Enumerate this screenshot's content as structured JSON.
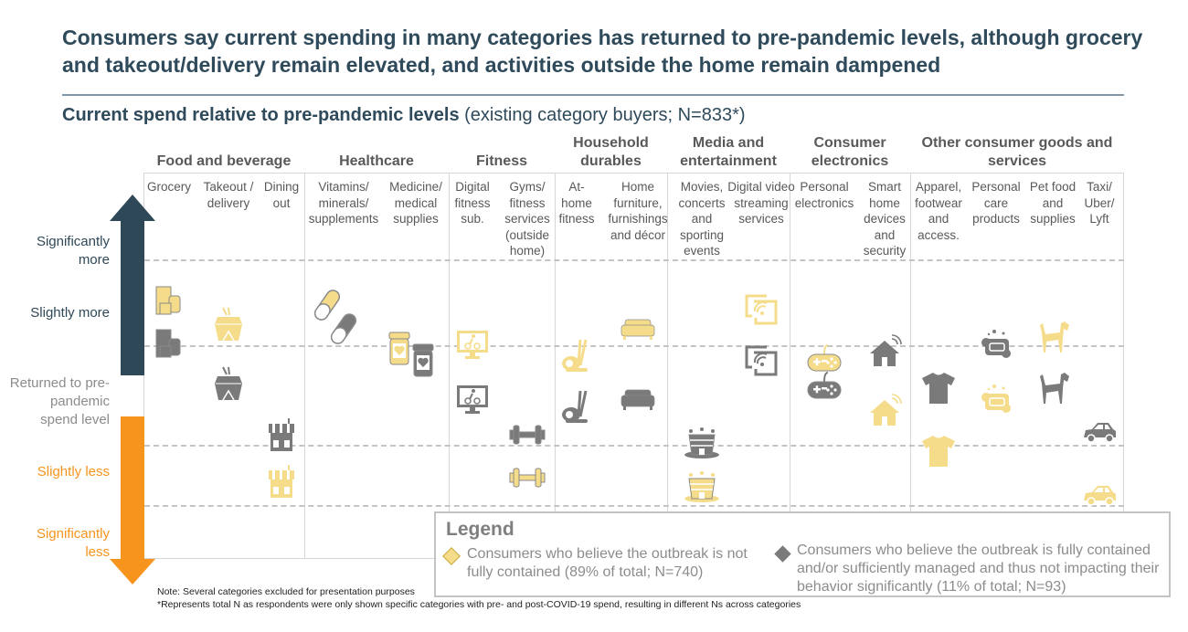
{
  "title": "Consumers say current spending in many categories has returned to pre-pandemic levels, although grocery and takeout/delivery remain elevated, and activities outside the home remain dampened",
  "subtitle": {
    "bold": "Current spend relative to pre-pandemic levels",
    "rest": " (existing category buyers; N=833*)"
  },
  "colors": {
    "not_contained": "#f5dc8a",
    "contained": "#7a7a7a",
    "more_arrow": "#2f4858",
    "less_arrow": "#f7941d",
    "title": "#2e4a5b"
  },
  "y_axis": [
    {
      "label": "Significantly more",
      "level": 2,
      "color": "#2f4858"
    },
    {
      "label": "Slightly more",
      "level": 1,
      "color": "#2f4858"
    },
    {
      "label": "Returned to pre-pandemic spend level",
      "level": 0,
      "color": "#8c8c8c"
    },
    {
      "label": "Slightly less",
      "level": -1,
      "color": "#f7941d"
    },
    {
      "label": "Significantly less",
      "level": -2,
      "color": "#f7941d"
    }
  ],
  "groups": [
    {
      "label": "Food and beverage"
    },
    {
      "label": "Healthcare"
    },
    {
      "label": "Fitness"
    },
    {
      "label": "Household durables"
    },
    {
      "label": "Media and entertainment"
    },
    {
      "label": "Consumer electronics"
    },
    {
      "label": "Other consumer goods and services"
    }
  ],
  "chart_data": {
    "type": "scatter",
    "title": "Current spend relative to pre-pandemic levels",
    "y_scale": "ordinal: Significantly less (-2) to Significantly more (+2)",
    "series": [
      {
        "name": "Consumers who believe the outbreak is not fully contained (89% of total; N=740)",
        "key": "not_contained"
      },
      {
        "name": "Consumers who believe the outbreak is fully contained and/or sufficiently managed and thus not impacting their behavior significantly (11% of total; N=93)",
        "key": "contained"
      }
    ],
    "categories": [
      {
        "label": "Grocery",
        "group": 0,
        "icon": "grocery-icon",
        "not_contained": 1.25,
        "contained": 0.7
      },
      {
        "label": "Takeout / delivery",
        "group": 0,
        "icon": "takeout-box-icon",
        "not_contained": 0.95,
        "contained": 0.2
      },
      {
        "label": "Dining out",
        "group": 0,
        "icon": "restaurant-icon",
        "not_contained": -1.05,
        "contained": -0.45
      },
      {
        "label": "Vitamins/ minerals/ supplements",
        "group": 1,
        "icon": "pill-capsule-icon",
        "not_contained": 1.2,
        "contained": 0.9
      },
      {
        "label": "Medicine/ medical supplies",
        "group": 1,
        "icon": "medicine-bottle-icon",
        "not_contained": 0.65,
        "contained": 0.5
      },
      {
        "label": "Digital fitness sub.",
        "group": 2,
        "icon": "cycling-monitor-icon",
        "not_contained": 0.7,
        "contained": 0.0
      },
      {
        "label": "Gyms/ fitness services (outside home)",
        "group": 2,
        "icon": "dumbbell-icon",
        "not_contained": -1.0,
        "contained": -0.45
      },
      {
        "label": "At-home fitness",
        "group": 3,
        "icon": "elliptical-icon",
        "not_contained": 0.55,
        "contained": -0.1
      },
      {
        "label": "Home furniture, furnishings and décor",
        "group": 3,
        "icon": "sofa-icon",
        "not_contained": 0.9,
        "contained": 0.0
      },
      {
        "label": "Movies, concerts and sporting events",
        "group": 4,
        "icon": "stadium-icon",
        "not_contained": -1.1,
        "contained": -0.55
      },
      {
        "label": "Digital video streaming services",
        "group": 4,
        "icon": "screen-cast-icon",
        "not_contained": 1.15,
        "contained": 0.5
      },
      {
        "label": "Personal electronics",
        "group": 5,
        "icon": "game-controller-icon",
        "not_contained": 0.5,
        "contained": 0.15
      },
      {
        "label": "Smart home devices and security",
        "group": 5,
        "icon": "smart-home-icon",
        "not_contained": -0.15,
        "contained": 0.6
      },
      {
        "label": "Apparel, footwear and access.",
        "group": 6,
        "icon": "t-shirt-icon",
        "not_contained": -0.65,
        "contained": 0.15
      },
      {
        "label": "Personal care products",
        "group": 6,
        "icon": "soap-icon",
        "not_contained": 0.0,
        "contained": 0.7
      },
      {
        "label": "Pet food and supplies",
        "group": 6,
        "icon": "dog-icon",
        "not_contained": 0.8,
        "contained": 0.15
      },
      {
        "label": "Taxi/ Uber/ Lyft",
        "group": 6,
        "icon": "car-icon",
        "not_contained": -1.2,
        "contained": -0.4
      }
    ]
  },
  "legend": {
    "title": "Legend",
    "not_contained": "Consumers who believe the outbreak is not fully contained (89% of total; N=740)",
    "contained": "Consumers who believe the outbreak is fully contained and/or sufficiently managed and thus not impacting their behavior significantly (11% of total; N=93)"
  },
  "notes": {
    "note": "Note: Several categories excluded for presentation purposes",
    "asterisk": "*Represents total N as respondents were only shown specific categories with pre- and post-COVID-19 spend, resulting in different Ns across categories"
  }
}
